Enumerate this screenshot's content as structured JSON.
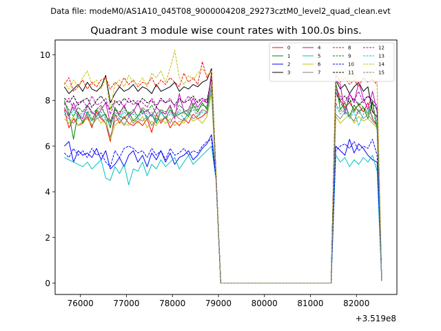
{
  "figure": {
    "suptitle": "Data file: modeM0/AS1A10_045T08_9000004208_29273cztM0_level2_quad_clean.evt"
  },
  "chart_data": {
    "type": "line",
    "title": "Quadrant 3 module wise count rates with 100.0s bins.",
    "xlabel": "",
    "ylabel": "",
    "x_offset_label": "+3.519e8",
    "x_offset": 351900000,
    "xlim": [
      75450,
      82880
    ],
    "ylim": [
      -0.5,
      10.65
    ],
    "xticks": [
      76000,
      77000,
      78000,
      79000,
      80000,
      81000,
      82000
    ],
    "xtick_labels": [
      "76000",
      "77000",
      "78000",
      "79000",
      "80000",
      "81000",
      "82000"
    ],
    "yticks": [
      0,
      2,
      4,
      6,
      8,
      10
    ],
    "ytick_labels": [
      "0",
      "2",
      "4",
      "6",
      "8",
      "10"
    ],
    "grid": false,
    "legend_position": "top-right",
    "legend_columns": 4,
    "x_segment1_start": 75650,
    "x_segment1_step": 100,
    "x_segment1_points": 36,
    "x_segment2_start": 81450,
    "x_segment2_step": 100,
    "x_segment2_points": 12,
    "series": [
      {
        "name": "0",
        "color": "#ff0000",
        "dash": "solid",
        "seg1": [
          7.6,
          6.8,
          7.2,
          6.9,
          7.0,
          7.3,
          6.8,
          7.5,
          7.2,
          7.0,
          6.2,
          7.4,
          7.0,
          7.3,
          7.0,
          6.9,
          7.1,
          6.9,
          7.2,
          6.6,
          7.4,
          7.0,
          7.3,
          6.8,
          7.1,
          6.9,
          7.2,
          7.0,
          7.4,
          7.2,
          7.3,
          7.5,
          9.3,
          4.5,
          0.0,
          0.0
        ],
        "seg2": [
          0.0,
          8.7,
          8.0,
          7.7,
          7.9,
          7.6,
          7.8,
          7.5,
          7.9,
          7.2,
          6.9,
          0.1
        ]
      },
      {
        "name": "1",
        "color": "#008000",
        "dash": "solid",
        "seg1": [
          8.0,
          7.4,
          6.3,
          7.5,
          7.0,
          7.5,
          7.1,
          7.6,
          7.3,
          7.4,
          6.8,
          7.7,
          7.3,
          7.2,
          7.5,
          7.1,
          7.3,
          7.6,
          7.2,
          7.4,
          7.0,
          7.5,
          7.2,
          7.6,
          7.3,
          7.4,
          7.5,
          7.3,
          7.8,
          7.5,
          7.9,
          7.6,
          9.2,
          4.6,
          0.0,
          0.0
        ],
        "seg2": [
          0.0,
          8.8,
          7.6,
          7.9,
          7.3,
          7.8,
          7.5,
          7.7,
          7.2,
          7.9,
          6.8,
          0.1
        ]
      },
      {
        "name": "2",
        "color": "#0000ff",
        "dash": "solid",
        "seg1": [
          6.0,
          6.2,
          5.3,
          5.8,
          5.6,
          5.7,
          5.5,
          5.9,
          5.4,
          5.8,
          5.0,
          5.2,
          5.5,
          5.1,
          5.6,
          5.8,
          5.3,
          5.6,
          5.1,
          5.7,
          5.4,
          5.8,
          5.3,
          5.7,
          5.2,
          5.5,
          5.6,
          5.8,
          5.4,
          5.6,
          5.9,
          6.1,
          6.5,
          4.6,
          0.0,
          0.0
        ],
        "seg2": [
          0.0,
          6.0,
          5.8,
          5.6,
          6.3,
          5.7,
          6.1,
          5.9,
          5.6,
          5.4,
          5.3,
          0.1
        ]
      },
      {
        "name": "3",
        "color": "#000000",
        "dash": "solid",
        "seg1": [
          8.6,
          8.3,
          8.5,
          8.7,
          8.4,
          8.8,
          8.5,
          8.4,
          8.6,
          9.1,
          7.9,
          8.3,
          8.6,
          8.4,
          8.5,
          8.7,
          8.4,
          8.6,
          8.5,
          8.3,
          8.7,
          8.4,
          8.5,
          8.6,
          8.8,
          8.4,
          8.6,
          8.5,
          8.7,
          8.6,
          8.8,
          8.9,
          9.4,
          4.7,
          0.0,
          0.0
        ],
        "seg2": [
          0.0,
          8.9,
          8.5,
          8.7,
          8.3,
          8.6,
          8.8,
          8.4,
          8.6,
          7.5,
          7.3,
          0.1
        ]
      },
      {
        "name": "4",
        "color": "#bf00bf",
        "dash": "solid",
        "seg1": [
          7.7,
          7.3,
          7.9,
          7.4,
          7.2,
          7.8,
          7.5,
          7.3,
          7.6,
          7.9,
          7.0,
          7.6,
          7.4,
          7.8,
          7.3,
          7.5,
          7.9,
          7.4,
          7.6,
          7.3,
          7.7,
          7.5,
          7.4,
          7.8,
          7.2,
          8.3,
          7.5,
          7.6,
          8.1,
          7.7,
          8.0,
          7.9,
          9.0,
          4.7,
          0.0,
          0.0
        ],
        "seg2": [
          0.0,
          8.9,
          8.7,
          7.4,
          8.3,
          7.9,
          8.8,
          8.1,
          7.6,
          8.4,
          7.5,
          0.1
        ]
      },
      {
        "name": "5",
        "color": "#00bfbf",
        "dash": "solid",
        "seg1": [
          5.5,
          5.4,
          5.3,
          5.2,
          5.1,
          5.3,
          5.0,
          5.2,
          5.4,
          4.6,
          4.5,
          5.1,
          4.8,
          5.2,
          4.3,
          5.0,
          4.9,
          5.3,
          4.7,
          5.2,
          5.0,
          5.4,
          5.1,
          5.3,
          5.5,
          5.0,
          5.3,
          5.6,
          5.2,
          5.4,
          5.6,
          5.8,
          6.0,
          4.5,
          0.0,
          0.0
        ],
        "seg2": [
          0.0,
          5.6,
          5.3,
          5.5,
          5.1,
          5.4,
          5.2,
          5.5,
          5.3,
          5.6,
          4.9,
          0.1
        ]
      },
      {
        "name": "6",
        "color": "#bfbf00",
        "dash": "solid",
        "seg1": [
          7.2,
          7.0,
          7.3,
          6.9,
          7.1,
          7.2,
          6.9,
          7.3,
          7.0,
          7.2,
          6.3,
          6.9,
          7.1,
          7.0,
          6.9,
          7.2,
          7.0,
          7.3,
          6.8,
          7.1,
          6.9,
          7.2,
          7.0,
          7.2,
          6.9,
          7.1,
          7.0,
          7.3,
          7.1,
          7.2,
          7.0,
          7.3,
          8.3,
          4.4,
          0.0,
          0.0
        ],
        "seg2": [
          0.0,
          7.3,
          7.0,
          7.2,
          7.4,
          7.0,
          7.3,
          7.1,
          7.2,
          7.0,
          6.8,
          0.1
        ]
      },
      {
        "name": "7",
        "color": "#808080",
        "dash": "solid",
        "seg1": [
          7.4,
          7.2,
          7.0,
          7.3,
          7.1,
          7.4,
          6.9,
          7.2,
          7.3,
          7.0,
          6.4,
          7.1,
          7.2,
          6.9,
          7.3,
          7.0,
          7.2,
          7.1,
          7.3,
          6.9,
          7.2,
          7.1,
          7.3,
          7.0,
          7.4,
          7.2,
          7.1,
          7.5,
          7.2,
          7.3,
          7.6,
          7.5,
          8.7,
          4.5,
          0.0,
          0.0
        ],
        "seg2": [
          0.0,
          7.4,
          7.2,
          7.5,
          7.3,
          7.1,
          7.6,
          7.2,
          7.4,
          7.1,
          6.9,
          0.1
        ]
      },
      {
        "name": "8",
        "color": "#ff0000",
        "dash": "dashed",
        "seg1": [
          8.7,
          9.0,
          8.4,
          8.6,
          8.9,
          8.5,
          8.8,
          8.6,
          8.9,
          9.0,
          8.5,
          8.8,
          8.6,
          9.0,
          8.7,
          8.9,
          8.6,
          8.8,
          8.7,
          9.0,
          8.6,
          8.9,
          8.7,
          9.0,
          8.8,
          8.6,
          9.2,
          8.8,
          9.0,
          8.7,
          9.7,
          9.0,
          9.3,
          4.6,
          0.0,
          0.0
        ],
        "seg2": [
          0.0,
          9.1,
          8.8,
          9.0,
          8.7,
          8.9,
          8.6,
          9.0,
          8.8,
          8.9,
          8.7,
          0.1
        ]
      },
      {
        "name": "9",
        "color": "#008000",
        "dash": "dashed",
        "seg1": [
          7.9,
          7.6,
          7.3,
          7.7,
          7.5,
          7.8,
          7.4,
          7.6,
          7.8,
          7.3,
          7.1,
          7.6,
          7.5,
          7.7,
          7.4,
          7.6,
          7.3,
          7.7,
          7.5,
          7.8,
          7.4,
          7.6,
          7.5,
          7.7,
          7.4,
          7.8,
          7.6,
          7.5,
          7.9,
          7.6,
          7.8,
          7.7,
          9.1,
          4.6,
          0.0,
          0.0
        ],
        "seg2": [
          0.0,
          8.4,
          7.9,
          7.6,
          8.1,
          7.5,
          7.9,
          7.7,
          7.4,
          8.0,
          6.7,
          0.1
        ]
      },
      {
        "name": "10",
        "color": "#0000ff",
        "dash": "dashed",
        "seg1": [
          5.7,
          5.5,
          5.9,
          5.6,
          5.8,
          5.5,
          5.9,
          5.6,
          5.7,
          5.3,
          5.1,
          5.8,
          5.5,
          5.9,
          6.0,
          5.9,
          5.7,
          5.8,
          5.5,
          5.9,
          5.6,
          5.8,
          5.4,
          5.9,
          5.6,
          5.7,
          5.9,
          5.6,
          5.8,
          5.7,
          6.0,
          6.2,
          6.3,
          4.5,
          0.0,
          0.0
        ],
        "seg2": [
          0.0,
          5.8,
          6.0,
          6.1,
          5.9,
          6.2,
          5.8,
          6.0,
          5.9,
          6.3,
          5.6,
          0.1
        ]
      },
      {
        "name": "11",
        "color": "#000000",
        "dash": "dashed",
        "seg1": [
          8.1,
          7.9,
          8.2,
          7.8,
          8.0,
          8.1,
          7.7,
          8.0,
          8.2,
          7.9,
          7.6,
          8.0,
          7.8,
          8.1,
          7.9,
          8.0,
          7.8,
          8.1,
          7.9,
          8.0,
          7.7,
          8.1,
          7.9,
          8.0,
          7.8,
          8.1,
          7.9,
          8.0,
          8.2,
          7.9,
          8.1,
          8.0,
          9.0,
          4.6,
          0.0,
          0.0
        ],
        "seg2": [
          0.0,
          8.3,
          8.0,
          8.2,
          7.9,
          8.1,
          7.8,
          8.0,
          8.2,
          7.9,
          7.6,
          0.1
        ]
      },
      {
        "name": "12",
        "color": "#bf00bf",
        "dash": "dashed",
        "seg1": [
          7.8,
          8.1,
          7.6,
          7.9,
          8.0,
          7.7,
          8.2,
          7.8,
          7.9,
          8.1,
          7.4,
          7.9,
          8.0,
          7.7,
          8.1,
          7.8,
          8.0,
          7.9,
          7.7,
          8.1,
          7.8,
          8.0,
          7.9,
          8.1,
          7.7,
          8.0,
          7.9,
          8.2,
          7.8,
          8.0,
          8.1,
          7.9,
          9.1,
          4.6,
          0.0,
          0.0
        ],
        "seg2": [
          0.0,
          8.5,
          8.2,
          7.9,
          8.3,
          8.0,
          8.4,
          7.9,
          8.2,
          8.0,
          7.8,
          0.1
        ]
      },
      {
        "name": "13",
        "color": "#00bfbf",
        "dash": "dashed",
        "seg1": [
          7.5,
          7.3,
          7.6,
          7.2,
          7.4,
          7.5,
          7.1,
          7.3,
          7.5,
          7.2,
          6.9,
          7.4,
          7.2,
          7.5,
          7.3,
          7.4,
          7.2,
          7.5,
          7.3,
          7.4,
          7.1,
          7.5,
          7.2,
          7.4,
          7.3,
          7.5,
          7.2,
          7.4,
          7.6,
          7.3,
          7.5,
          7.4,
          8.5,
          4.5,
          0.0,
          0.0
        ],
        "seg2": [
          0.0,
          7.8,
          7.4,
          7.6,
          7.2,
          7.5,
          6.9,
          7.4,
          7.6,
          7.3,
          7.1,
          0.1
        ]
      },
      {
        "name": "14",
        "color": "#bfbf00",
        "dash": "dashed",
        "seg1": [
          8.8,
          8.5,
          8.9,
          8.6,
          9.0,
          9.3,
          8.7,
          8.9,
          8.5,
          9.0,
          7.6,
          8.7,
          8.9,
          8.6,
          9.1,
          8.8,
          8.7,
          9.0,
          8.6,
          9.2,
          9.0,
          9.3,
          8.8,
          9.4,
          10.2,
          9.0,
          8.7,
          9.1,
          8.9,
          9.2,
          9.4,
          9.1,
          9.3,
          4.7,
          0.0,
          0.0
        ],
        "seg2": [
          0.0,
          9.2,
          8.9,
          9.4,
          8.8,
          9.1,
          8.7,
          9.0,
          9.3,
          8.9,
          8.8,
          0.1
        ]
      },
      {
        "name": "15",
        "color": "#808080",
        "dash": "dashed",
        "seg1": [
          7.6,
          7.4,
          7.7,
          7.3,
          7.5,
          7.6,
          7.2,
          7.5,
          7.7,
          7.3,
          7.0,
          7.5,
          7.3,
          7.6,
          7.4,
          7.5,
          7.3,
          7.6,
          7.4,
          7.5,
          7.2,
          7.6,
          7.4,
          7.5,
          7.3,
          7.6,
          7.4,
          7.5,
          7.7,
          7.4,
          7.6,
          7.5,
          8.6,
          4.5,
          0.0,
          0.0
        ],
        "seg2": [
          0.0,
          7.9,
          7.5,
          7.7,
          7.3,
          7.6,
          7.4,
          7.7,
          7.5,
          7.6,
          7.2,
          0.1
        ]
      }
    ]
  }
}
